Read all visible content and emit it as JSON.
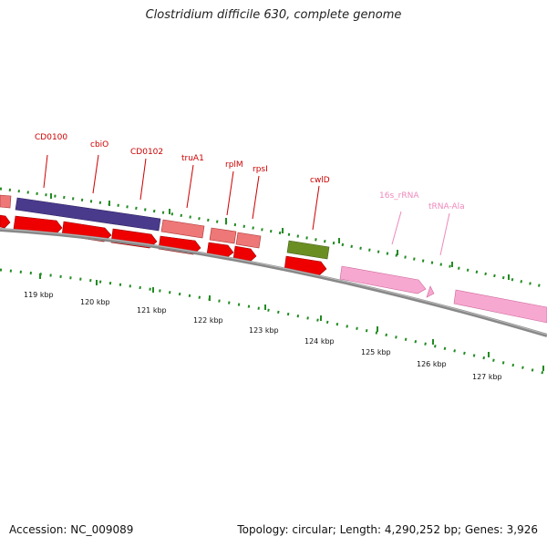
{
  "header": {
    "title": "Clostridium difficile 630, complete genome"
  },
  "footer": {
    "accession": "Accession: NC_009089",
    "stats": "Topology: circular; Length: 4,290,252 bp; Genes: 3,926"
  },
  "map": {
    "kbp_labels": [
      "119 kbp",
      "120 kbp",
      "121 kbp",
      "122 kbp",
      "123 kbp",
      "124 kbp",
      "125 kbp",
      "126 kbp",
      "127 kbp"
    ],
    "gene_labels": [
      {
        "name": "CD0100",
        "color": "#cc0000"
      },
      {
        "name": "cbiO",
        "color": "#cc0000"
      },
      {
        "name": "CD0102",
        "color": "#cc0000"
      },
      {
        "name": "truA1",
        "color": "#cc0000"
      },
      {
        "name": "rplM",
        "color": "#cc0000"
      },
      {
        "name": "rpsI",
        "color": "#cc0000"
      },
      {
        "name": "cwlD",
        "color": "#cc0000"
      },
      {
        "name": "16s_rRNA",
        "color": "#ee88bb"
      },
      {
        "name": "tRNA-Ala",
        "color": "#ee88bb"
      }
    ],
    "colors": {
      "cds": "#ee0000",
      "cds_light": "#ee7777",
      "cbio": "#4a3a8c",
      "cwld": "#6b8e23",
      "rrna": "#f7a8d0",
      "backbone": "#888888",
      "tick": "#228b22"
    }
  }
}
